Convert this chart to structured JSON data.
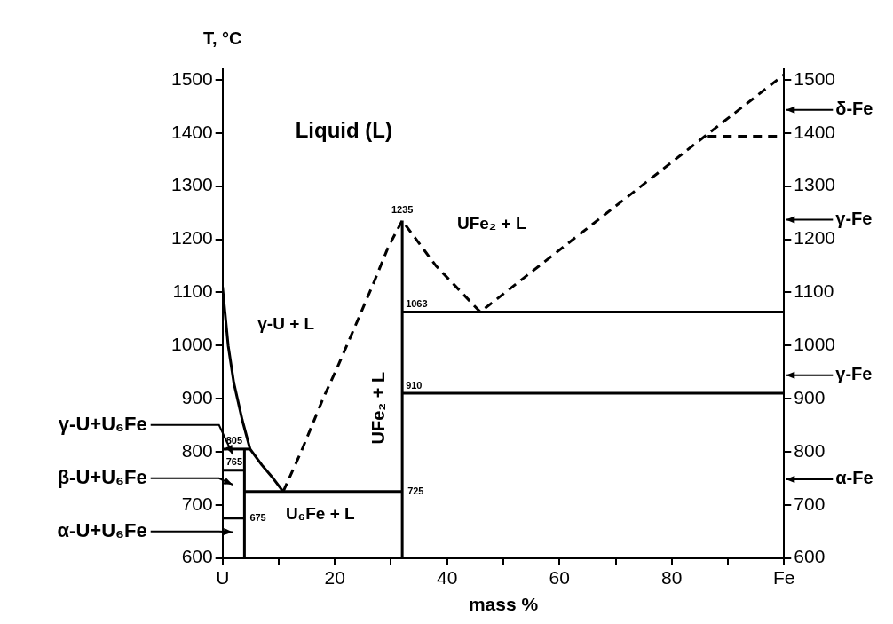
{
  "chart_data": {
    "type": "line",
    "xlabel": "mass %",
    "ylabel": "T, °C",
    "xlim": [
      0,
      100
    ],
    "ylim": [
      600,
      1520
    ],
    "y2lim": [
      600,
      1520
    ],
    "xticks": [
      {
        "value": 0,
        "label": "U"
      },
      {
        "value": 10,
        "label": null
      },
      20,
      {
        "value": 30,
        "label": null
      },
      40,
      {
        "value": 50,
        "label": null
      },
      60,
      {
        "value": 70,
        "label": null
      },
      80,
      {
        "value": 90,
        "label": null
      },
      {
        "value": 100,
        "label": "Fe"
      }
    ],
    "yticks": [
      600,
      700,
      800,
      900,
      1000,
      1100,
      1200,
      1300,
      1400,
      1500
    ],
    "y2ticks": [
      600,
      700,
      800,
      900,
      1000,
      1100,
      1200,
      1300,
      1400,
      1500
    ],
    "legend": false,
    "marker": "none",
    "series": [
      {
        "type": "line",
        "color": "#000000",
        "line_style": "solid",
        "x": [
          0,
          1,
          2,
          3.5,
          4.9,
          7,
          9,
          10.8
        ],
        "values": [
          1110,
          1000,
          930,
          860,
          805,
          775,
          750,
          725
        ]
      },
      {
        "type": "line",
        "color": "#000000",
        "line_style": "dashed",
        "x": [
          10.8,
          14,
          17.9,
          20.5,
          24.7,
          27,
          29.5,
          32,
          38,
          45.9,
          86.4,
          100
        ],
        "values": [
          725,
          800,
          900,
          960,
          1063,
          1120,
          1185,
          1235,
          1150,
          1063,
          1398,
          1510
        ],
        "value_labels": [
          null,
          null,
          null,
          null,
          null,
          null,
          null,
          "1235",
          null,
          null,
          null,
          null
        ]
      },
      {
        "type": "line",
        "color": "#000000",
        "line_style": "dashed",
        "x": [
          86.4,
          100
        ],
        "values": [
          1394,
          1394
        ]
      },
      {
        "type": "line",
        "color": "#000000",
        "line_style": "solid",
        "x": [
          3.9,
          3.9
        ],
        "values": [
          600,
          805
        ]
      },
      {
        "type": "line",
        "color": "#000000",
        "line_style": "solid",
        "x": [
          32,
          32
        ],
        "values": [
          600,
          1235
        ]
      },
      {
        "type": "line",
        "color": "#000000",
        "line_style": "solid",
        "x": [
          0,
          4.9
        ],
        "values": [
          805,
          805
        ],
        "value_labels": [
          "805",
          null
        ]
      },
      {
        "type": "line",
        "color": "#000000",
        "line_style": "solid",
        "x": [
          0,
          3.9
        ],
        "values": [
          765,
          765
        ],
        "value_labels": [
          "765",
          null
        ]
      },
      {
        "type": "line",
        "color": "#000000",
        "line_style": "solid",
        "x": [
          0,
          3.9
        ],
        "values": [
          675,
          675
        ],
        "value_labels": [
          null,
          "675"
        ]
      },
      {
        "type": "line",
        "color": "#000000",
        "line_style": "solid",
        "x": [
          3.9,
          32
        ],
        "values": [
          725,
          725
        ],
        "value_labels": [
          null,
          "725"
        ]
      },
      {
        "type": "line",
        "color": "#000000",
        "line_style": "solid",
        "x": [
          32,
          100
        ],
        "values": [
          1063,
          1063
        ],
        "value_labels": [
          "1063",
          null
        ]
      },
      {
        "type": "line",
        "color": "#000000",
        "line_style": "solid",
        "x": [
          32,
          100
        ],
        "values": [
          910,
          910
        ],
        "value_labels": [
          "910",
          null
        ]
      }
    ],
    "annotations": [
      "Liquid (L)",
      "γ-U + L",
      "UFe₂ + L",
      "UFe₂ + L",
      "U₆Fe + L",
      "γ-U+U₆Fe",
      "β-U+U₆Fe",
      "α-U+U₆Fe",
      "δ-Fe",
      "γ-Fe",
      "γ-Fe",
      "α-Fe"
    ]
  }
}
